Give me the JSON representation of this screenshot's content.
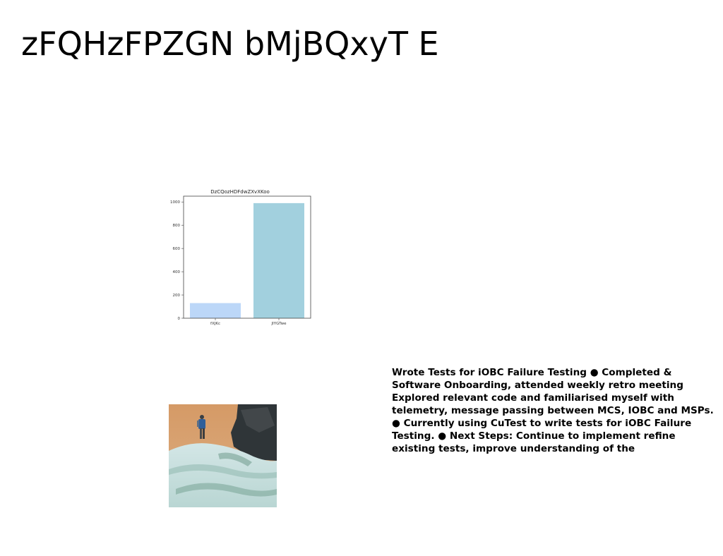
{
  "slide": {
    "title": "zFQHzFPZGN bMjBQxyT E"
  },
  "chart_data": {
    "type": "bar",
    "title": "DzCQozHDFdwZXvXKoo",
    "categories": [
      "fXJKc",
      "JIYGTwe"
    ],
    "values": [
      130,
      990
    ],
    "colors": [
      "#bcd7f8",
      "#a2d0de"
    ],
    "ylim": [
      0,
      1050
    ],
    "yticks": [
      0,
      200,
      400,
      600,
      800,
      1000
    ],
    "xlabel": "",
    "ylabel": "",
    "grid": false
  },
  "image": {
    "subject": "hiker-on-snowy-rock"
  },
  "notes": {
    "text": "Wrote Tests for iOBC Failure Testing ● Completed & Software Onboarding, attended weekly retro meeting Explored relevant code and familiarised myself with telemetry, message passing between MCS, IOBC and MSPs. ● Currently using CuTest to write tests for iOBC Failure Testing. ● Next Steps: Continue to implement refine existing tests, improve understanding of the"
  }
}
